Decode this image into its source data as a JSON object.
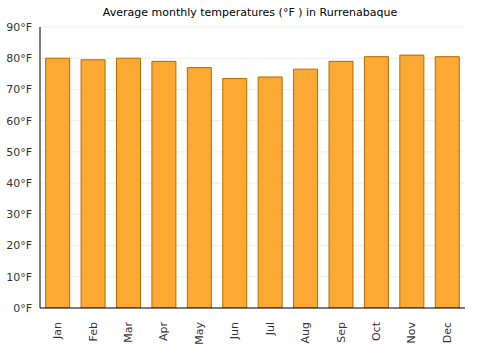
{
  "chart_data": {
    "type": "bar",
    "title": "Average monthly temperatures (°F ) in Rurrenabaque",
    "categories": [
      "Jan",
      "Feb",
      "Mar",
      "Apr",
      "May",
      "Jun",
      "Jul",
      "Aug",
      "Sep",
      "Oct",
      "Nov",
      "Dec"
    ],
    "values": [
      80,
      79.5,
      80,
      79,
      77,
      73.5,
      74,
      76.5,
      79,
      80.5,
      81,
      80.5
    ],
    "color": "#fca934",
    "ylim": [
      0,
      90
    ],
    "yticks": [
      {
        "value": 0,
        "label": "0°F"
      },
      {
        "value": 10,
        "label": "10°F"
      },
      {
        "value": 20,
        "label": "20°F"
      },
      {
        "value": 30,
        "label": "30°F"
      },
      {
        "value": 40,
        "label": "40°F"
      },
      {
        "value": 50,
        "label": "50°F"
      },
      {
        "value": 60,
        "label": "60°F"
      },
      {
        "value": 70,
        "label": "70°F"
      },
      {
        "value": 80,
        "label": "80°F"
      },
      {
        "value": 90,
        "label": "90°F"
      }
    ],
    "grid": true
  }
}
